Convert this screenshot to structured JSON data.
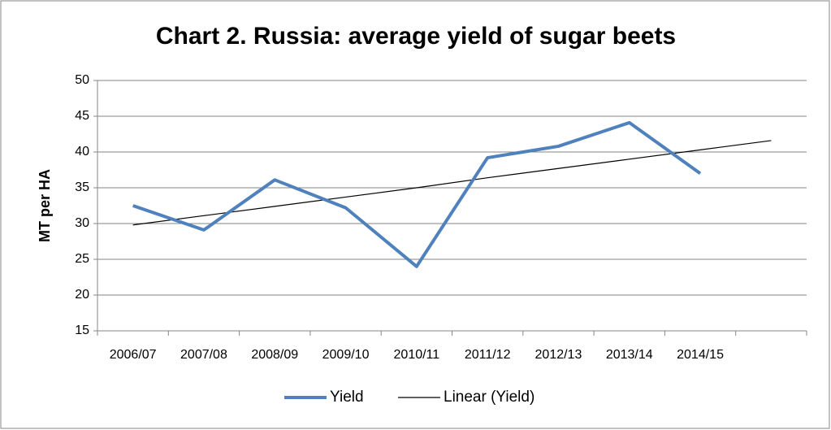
{
  "chart_data": {
    "type": "line",
    "title": "Chart 2. Russia: average yield of sugar beets",
    "y_label": "MT per HA",
    "categories": [
      "2006/07",
      "2007/08",
      "2008/09",
      "2009/10",
      "2010/11",
      "2011/12",
      "2012/13",
      "2013/14",
      "2014/15",
      null
    ],
    "series": [
      {
        "name": "Yield",
        "color": "#4f81bd",
        "values": [
          32.5,
          29.1,
          36.1,
          32.2,
          24.0,
          39.2,
          40.8,
          44.1,
          37.0,
          null
        ]
      },
      {
        "name": "Linear (Yield)",
        "color": "#000000",
        "values": [
          29.8,
          31.1,
          32.4,
          33.7,
          35.0,
          36.4,
          37.7,
          39.0,
          40.3,
          41.6
        ]
      }
    ],
    "ylim": [
      15,
      50
    ],
    "yticks": [
      15,
      20,
      25,
      30,
      35,
      40,
      45,
      50
    ],
    "grid": true,
    "legend": "bottom"
  }
}
